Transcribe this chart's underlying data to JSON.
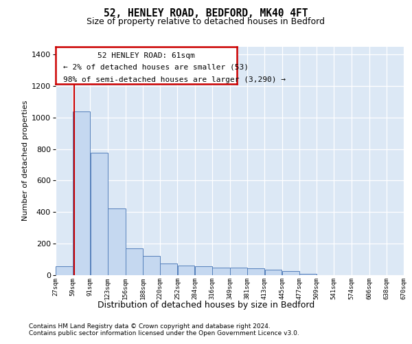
{
  "title1": "52, HENLEY ROAD, BEDFORD, MK40 4FT",
  "title2": "Size of property relative to detached houses in Bedford",
  "xlabel": "Distribution of detached houses by size in Bedford",
  "ylabel": "Number of detached properties",
  "bar_color": "#c5d8f0",
  "bar_edge_color": "#5580bb",
  "plot_bg_color": "#dce8f5",
  "annotation_line1": "52 HENLEY ROAD: 61sqm",
  "annotation_line2": "← 2% of detached houses are smaller (53)",
  "annotation_line3": "98% of semi-detached houses are larger (3,290) →",
  "annotation_box_color": "#ffffff",
  "annotation_box_edge": "#cc0000",
  "vline_color": "#cc0000",
  "footer1": "Contains HM Land Registry data © Crown copyright and database right 2024.",
  "footer2": "Contains public sector information licensed under the Open Government Licence v3.0.",
  "bin_edges": [
    27,
    59,
    91,
    123,
    156,
    188,
    220,
    252,
    284,
    316,
    349,
    381,
    413,
    445,
    477,
    509,
    541,
    574,
    606,
    638,
    670
  ],
  "bin_labels": [
    "27sqm",
    "59sqm",
    "91sqm",
    "123sqm",
    "156sqm",
    "188sqm",
    "220sqm",
    "252sqm",
    "284sqm",
    "316sqm",
    "349sqm",
    "381sqm",
    "413sqm",
    "445sqm",
    "477sqm",
    "509sqm",
    "541sqm",
    "574sqm",
    "606sqm",
    "638sqm",
    "670sqm"
  ],
  "values": [
    57,
    1040,
    775,
    425,
    170,
    120,
    75,
    60,
    55,
    50,
    50,
    45,
    35,
    25,
    10,
    0,
    0,
    0,
    0,
    0
  ],
  "ylim": [
    0,
    1450
  ],
  "yticks": [
    0,
    200,
    400,
    600,
    800,
    1000,
    1200,
    1400
  ],
  "property_sqm": 61,
  "title1_fontsize": 10.5,
  "title2_fontsize": 9,
  "ylabel_fontsize": 8,
  "xlabel_fontsize": 9,
  "tick_fontsize": 8,
  "xtick_fontsize": 6.5,
  "annot_fontsize": 8,
  "footer_fontsize": 6.5
}
